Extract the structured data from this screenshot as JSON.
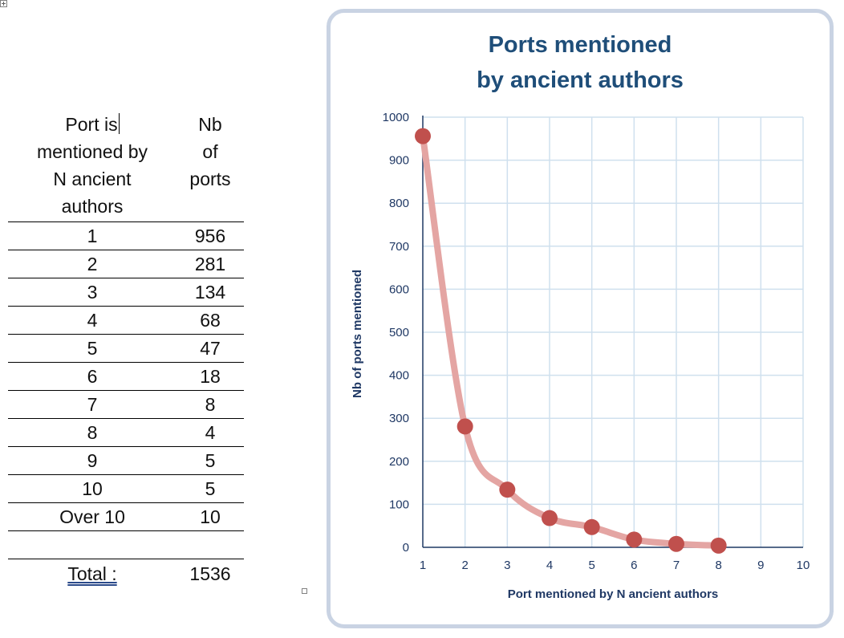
{
  "table": {
    "header_col1": [
      "Port is",
      "mentioned by",
      "N ancient",
      "authors"
    ],
    "header_col2": [
      "Nb",
      "of",
      "ports"
    ],
    "rows": [
      {
        "n": "1",
        "count": "956"
      },
      {
        "n": "2",
        "count": "281"
      },
      {
        "n": "3",
        "count": "134"
      },
      {
        "n": "4",
        "count": "68"
      },
      {
        "n": "5",
        "count": "47"
      },
      {
        "n": "6",
        "count": "18"
      },
      {
        "n": "7",
        "count": "8"
      },
      {
        "n": "8",
        "count": "4"
      },
      {
        "n": "9",
        "count": "5"
      },
      {
        "n": "10",
        "count": "5"
      },
      {
        "n": "Over 10",
        "count": "10"
      }
    ],
    "total_label": "Total :",
    "total_value": "1536"
  },
  "chart_data": {
    "type": "scatter",
    "title_lines": [
      "Ports mentioned",
      "by ancient authors"
    ],
    "xlabel": "Port mentioned by N ancient authors",
    "ylabel": "Nb of ports mentioned",
    "xlim": [
      1,
      10
    ],
    "ylim": [
      0,
      1000
    ],
    "x_ticks": [
      "1",
      "2",
      "3",
      "4",
      "5",
      "6",
      "7",
      "8",
      "9",
      "10"
    ],
    "y_ticks": [
      "0",
      "100",
      "200",
      "300",
      "400",
      "500",
      "600",
      "700",
      "800",
      "900",
      "1000"
    ],
    "grid": true,
    "smoothed_line": true,
    "series": [
      {
        "x": [
          1,
          2,
          3,
          4,
          5,
          6,
          7,
          8
        ],
        "y": [
          956,
          281,
          134,
          68,
          47,
          18,
          8,
          4
        ]
      }
    ],
    "colors": {
      "marker": "#c0504d",
      "line": "#e4a5a3",
      "grid": "#cfe0ee",
      "axis": "#1f3864",
      "title": "#1f4e79",
      "frame": "#c9d3e3"
    }
  }
}
